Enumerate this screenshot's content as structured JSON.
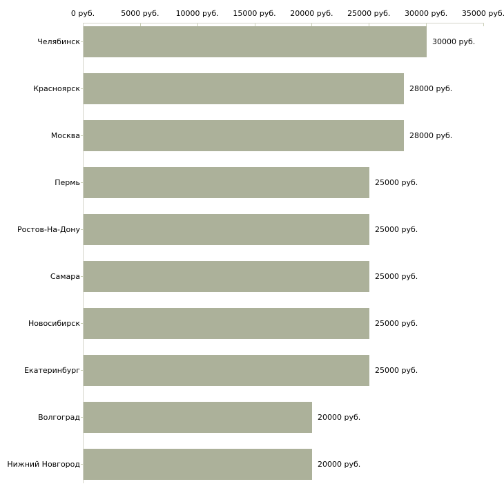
{
  "chart_data": {
    "type": "bar",
    "orientation": "horizontal",
    "title": "",
    "categories": [
      "Челябинск",
      "Красноярск",
      "Москва",
      "Пермь",
      "Ростов-На-Дону",
      "Самара",
      "Новосибирск",
      "Екатеринбург",
      "Волгоград",
      "Нижний Новгород"
    ],
    "values": [
      30000,
      28000,
      28000,
      25000,
      25000,
      25000,
      25000,
      25000,
      20000,
      20000
    ],
    "value_labels": [
      "30000 руб.",
      "28000 руб.",
      "28000 руб.",
      "25000 руб.",
      "25000 руб.",
      "25000 руб.",
      "25000 руб.",
      "25000 руб.",
      "20000 руб.",
      "20000 руб."
    ],
    "x_axis": {
      "position": "top",
      "ticks": [
        0,
        5000,
        10000,
        15000,
        20000,
        25000,
        30000,
        35000
      ],
      "tick_labels": [
        "0 руб.",
        "5000 руб.",
        "10000 руб.",
        "15000 руб.",
        "20000 руб.",
        "25000 руб.",
        "30000 руб.",
        "35000 руб."
      ],
      "lim": [
        0,
        35000
      ]
    },
    "ylabel": "",
    "xlabel": "",
    "grid": false,
    "legend": null,
    "colors": {
      "bar": "#acb19a",
      "axis_line": "#d4d4ca",
      "tick": "#c9cfb5",
      "text": "#000000",
      "background": "#ffffff"
    }
  }
}
